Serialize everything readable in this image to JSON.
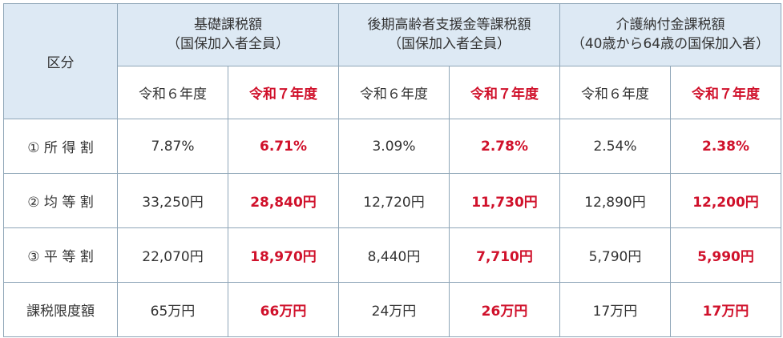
{
  "table": {
    "corner": "区分",
    "groups": [
      {
        "title": "基礎課税額",
        "subtitle": "（国保加入者全員）",
        "columns": [
          "令和６年度",
          "令和７年度"
        ]
      },
      {
        "title": "後期高齢者支援金等課税額",
        "subtitle": "（国保加入者全員）",
        "columns": [
          "令和６年度",
          "令和７年度"
        ]
      },
      {
        "title": "介護納付金課税額",
        "subtitle": "（40歳から64歳の国保加入者）",
        "columns": [
          "令和６年度",
          "令和７年度"
        ]
      }
    ],
    "rows": [
      {
        "label": "① 所 得 割",
        "cells": [
          "7.87%",
          "6.71%",
          "3.09%",
          "2.78%",
          "2.54%",
          "2.38%"
        ]
      },
      {
        "label": "② 均 等 割",
        "cells": [
          "33,250円",
          "28,840円",
          "12,720円",
          "11,730円",
          "12,890円",
          "12,200円"
        ]
      },
      {
        "label": "③ 平 等 割",
        "cells": [
          "22,070円",
          "18,970円",
          "8,440円",
          "7,710円",
          "5,790円",
          "5,990円"
        ]
      },
      {
        "label": "課税限度額",
        "cells": [
          "65万円",
          "66万円",
          "24万円",
          "26万円",
          "17万円",
          "17万円"
        ]
      }
    ]
  }
}
